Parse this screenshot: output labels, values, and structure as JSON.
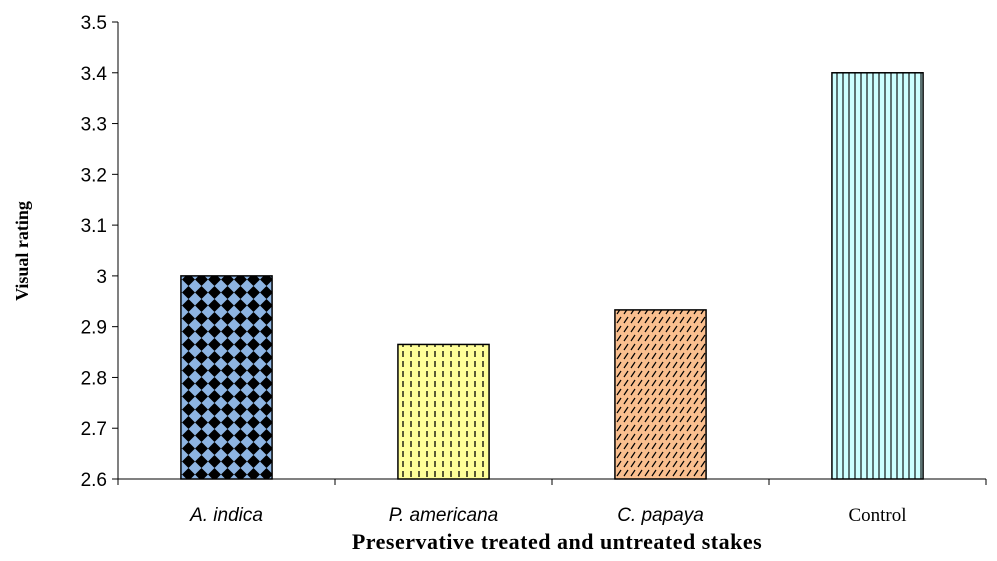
{
  "chart_data": {
    "type": "bar",
    "xlabel": "Preservative treated and untreated stakes",
    "ylabel": "Visual rating",
    "ylim": [
      2.6,
      3.5
    ],
    "ytick_step": 0.1,
    "yticks": [
      "2.6",
      "2.7",
      "2.8",
      "2.9",
      "3",
      "3.1",
      "3.2",
      "3.3",
      "3.4",
      "3.5"
    ],
    "grid": false,
    "legend": "none",
    "categories": [
      "A. indica",
      "P. americana",
      "C. papaya",
      "Control"
    ],
    "category_italic": [
      true,
      true,
      true,
      false
    ],
    "values": [
      3.0,
      2.865,
      2.933,
      3.4
    ],
    "bar_colors": [
      "#8db4e2",
      "#ffff99",
      "#fabf8f",
      "#ccffff"
    ],
    "bar_patterns": [
      "diamond-grid",
      "vertical-dashes",
      "diagonal-hatch",
      "vertical-lines"
    ]
  }
}
